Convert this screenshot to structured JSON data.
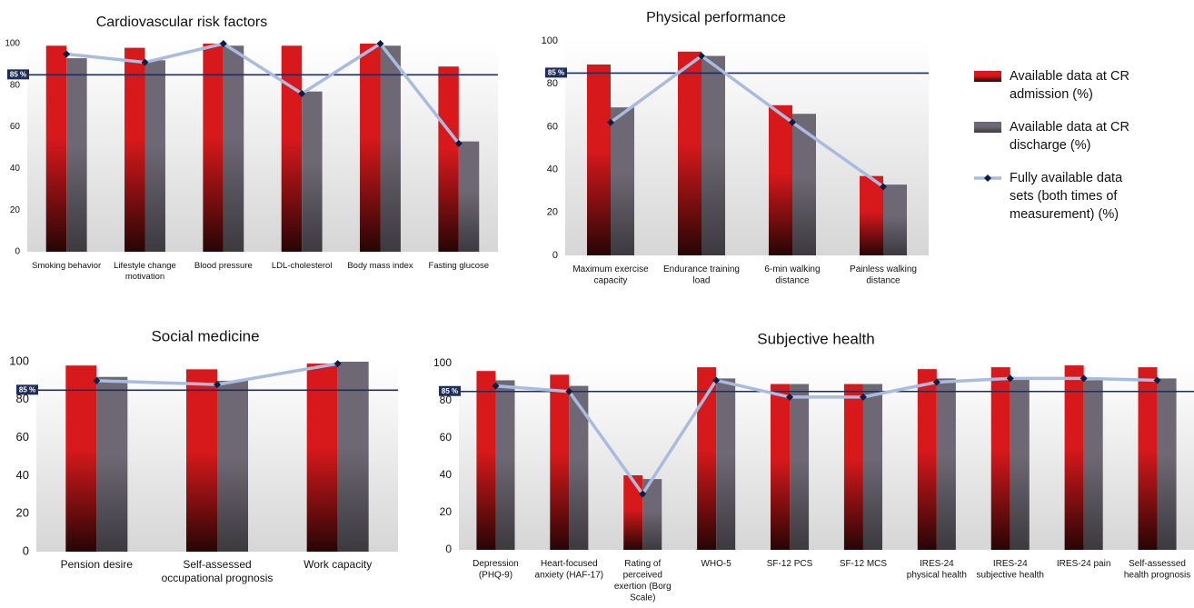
{
  "chart_data": [
    {
      "type": "bar",
      "title": "Cardiovascular risk factors",
      "categories": [
        "Smoking behavior",
        "Lifestyle change motivation",
        "Blood pressure",
        "LDL-cholesterol",
        "Body mass index",
        "Fasting glucose"
      ],
      "series": [
        {
          "name": "Available data  at CR admission (%)",
          "color": "#d7191c",
          "values": [
            99,
            98,
            100,
            99,
            100,
            89
          ]
        },
        {
          "name": "Available data at CR discharge (%)",
          "color": "#6d6873",
          "values": [
            93,
            92,
            99,
            77,
            99,
            53
          ]
        },
        {
          "name": "Fully available data sets (both times of measurement) (%)",
          "type": "line",
          "color": "#a9bce0",
          "marker_color": "#0d1b45",
          "values": [
            95,
            91,
            100,
            76,
            100,
            52
          ]
        }
      ],
      "ylim": [
        0,
        100
      ],
      "yticks": [
        0,
        20,
        40,
        60,
        80,
        100
      ],
      "grid": false,
      "ref_line": {
        "value": 85,
        "label": "85 %"
      }
    },
    {
      "type": "bar",
      "title": "Physical performance",
      "categories": [
        "Maximum exercise capacity",
        "Endurance training load",
        "6-min walking distance",
        "Painless walking distance"
      ],
      "series": [
        {
          "color": "#d7191c",
          "values": [
            89,
            95,
            70,
            37
          ]
        },
        {
          "color": "#6d6873",
          "values": [
            69,
            93,
            66,
            33
          ]
        },
        {
          "type": "line",
          "color": "#a9bce0",
          "marker_color": "#0d1b45",
          "values": [
            62,
            93,
            62,
            32
          ]
        }
      ],
      "ylim": [
        0,
        100
      ],
      "yticks": [
        0,
        20,
        40,
        60,
        80,
        100
      ],
      "grid": false,
      "ref_line": {
        "value": 85,
        "label": "85 %"
      }
    },
    {
      "type": "bar",
      "title": "Social medicine",
      "categories": [
        "Pension desire",
        "Self-assessed occupational prognosis",
        "Work capacity"
      ],
      "series": [
        {
          "color": "#d7191c",
          "values": [
            98,
            96,
            99
          ]
        },
        {
          "color": "#6d6873",
          "values": [
            92,
            90,
            100
          ]
        },
        {
          "type": "line",
          "color": "#a9bce0",
          "marker_color": "#0d1b45",
          "values": [
            90,
            88,
            99
          ]
        }
      ],
      "ylim": [
        0,
        100
      ],
      "yticks": [
        0,
        20,
        40,
        60,
        80,
        100
      ],
      "grid": false,
      "ref_line": {
        "value": 85,
        "label": "85 %"
      }
    },
    {
      "type": "bar",
      "title": "Subjective health",
      "categories": [
        "Depression (PHQ-9)",
        "Heart-focused anxiety (HAF-17)",
        "Rating of perceived exertion (Borg Scale)",
        "WHO-5",
        "SF-12 PCS",
        "SF-12 MCS",
        "IRES-24 physical health",
        "IRES-24 subjective health",
        "IRES-24 pain",
        "Self-assessed health prognosis"
      ],
      "series": [
        {
          "color": "#d7191c",
          "values": [
            96,
            94,
            40,
            98,
            89,
            89,
            97,
            98,
            99,
            98
          ]
        },
        {
          "color": "#6d6873",
          "values": [
            91,
            88,
            38,
            92,
            89,
            89,
            92,
            92,
            91,
            92
          ]
        },
        {
          "type": "line",
          "color": "#a9bce0",
          "marker_color": "#0d1b45",
          "values": [
            88,
            85,
            30,
            91,
            82,
            82,
            90,
            92,
            92,
            91
          ]
        }
      ],
      "ylim": [
        0,
        100
      ],
      "yticks": [
        0,
        20,
        40,
        60,
        80,
        100
      ],
      "grid": false,
      "ref_line": {
        "value": 85,
        "label": "85 %"
      }
    }
  ]
}
